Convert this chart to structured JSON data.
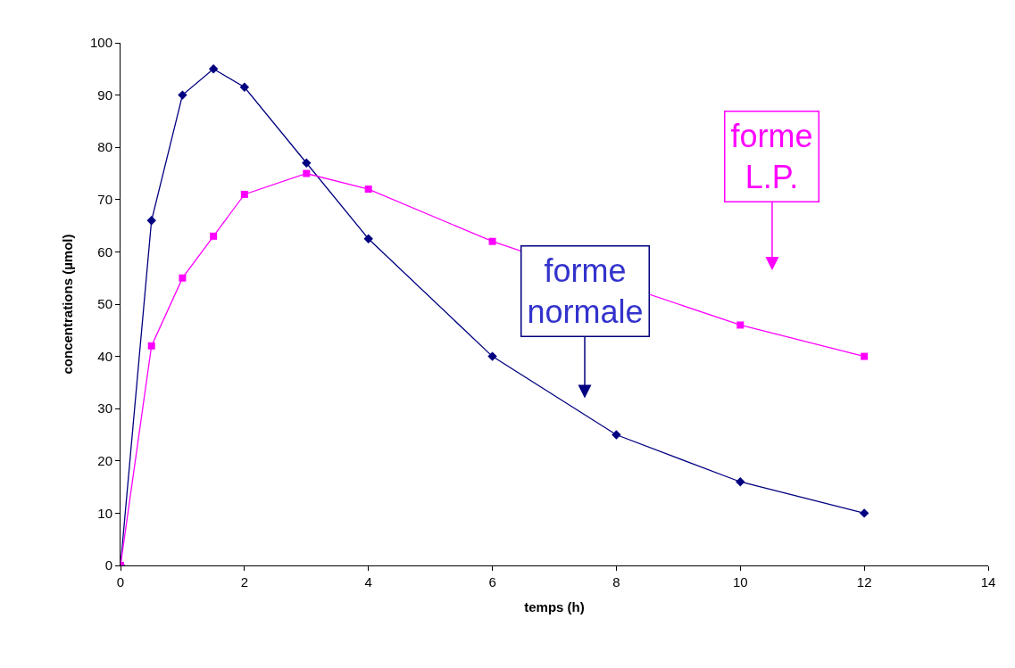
{
  "chart_data": {
    "type": "line",
    "xlabel": "temps (h)",
    "ylabel": "concentrations (µmol)",
    "x": [
      0,
      0.5,
      1,
      1.5,
      2,
      3,
      4,
      6,
      8,
      10,
      12
    ],
    "series": [
      {
        "color": "#000080",
        "marker": "diamond",
        "values": [
          0,
          66,
          90,
          95,
          91.5,
          77,
          62.5,
          40,
          25,
          16,
          10
        ]
      },
      {
        "color": "#ff00ff",
        "marker": "square",
        "values": [
          0,
          42,
          55,
          63,
          71,
          75,
          72,
          62,
          null,
          46,
          40
        ]
      }
    ],
    "xlim": [
      0,
      14
    ],
    "xticks": [
      0,
      2,
      4,
      6,
      8,
      10,
      12,
      14
    ],
    "ylim": [
      0,
      100
    ],
    "yticks": [
      0,
      10,
      20,
      30,
      40,
      50,
      60,
      70,
      80,
      90,
      100
    ],
    "grid": false,
    "line_style": "solid",
    "annotations": [
      "forme\nnormale",
      "forme\nL.P."
    ]
  }
}
